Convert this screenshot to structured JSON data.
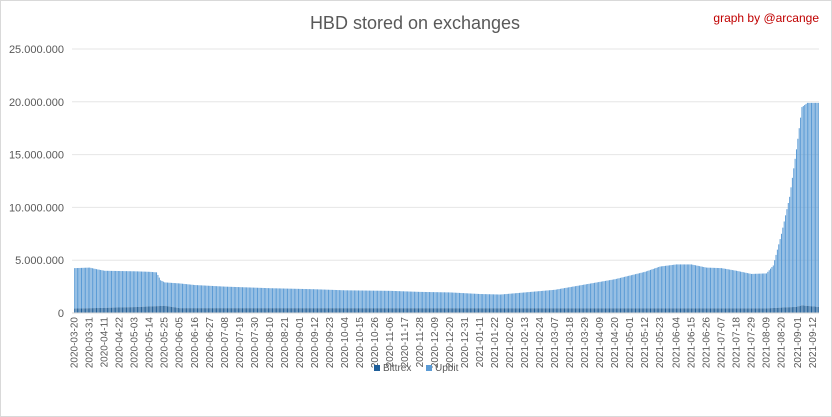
{
  "chart_data": {
    "type": "bar",
    "stacked": true,
    "title": "HBD stored on exchanges",
    "credit": "graph by @arcange",
    "xlabel": "",
    "ylabel": "",
    "ylim": [
      0,
      25000000
    ],
    "yticks": [
      "0",
      "5.000.000",
      "10.000.000",
      "15.000.000",
      "20.000.000",
      "25.000.000"
    ],
    "ytick_values": [
      0,
      5000000,
      10000000,
      15000000,
      20000000,
      25000000
    ],
    "grid": true,
    "legend_position": "bottom",
    "date_start": "2020-03-20",
    "date_end": "2021-09-16",
    "x_tick_labels": [
      "2020-03-20",
      "2020-03-31",
      "2020-04-11",
      "2020-04-22",
      "2020-05-03",
      "2020-05-14",
      "2020-05-25",
      "2020-06-05",
      "2020-06-16",
      "2020-06-27",
      "2020-07-08",
      "2020-07-19",
      "2020-07-30",
      "2020-08-10",
      "2020-08-21",
      "2020-09-01",
      "2020-09-12",
      "2020-09-23",
      "2020-10-04",
      "2020-10-15",
      "2020-10-26",
      "2020-11-06",
      "2020-11-17",
      "2020-11-28",
      "2020-12-09",
      "2020-12-20",
      "2020-12-31",
      "2021-01-11",
      "2021-01-22",
      "2021-02-02",
      "2021-02-13",
      "2021-02-24",
      "2021-03-07",
      "2021-03-18",
      "2021-03-29",
      "2021-04-09",
      "2021-04-20",
      "2021-05-01",
      "2021-05-12",
      "2021-05-23",
      "2021-06-04",
      "2021-06-15",
      "2021-06-26",
      "2021-07-07",
      "2021-07-18",
      "2021-07-29",
      "2021-08-09",
      "2021-08-20",
      "2021-09-01",
      "2021-09-12"
    ],
    "total_keypoints": [
      [
        "2020-03-20",
        4250000
      ],
      [
        "2020-03-31",
        4300000
      ],
      [
        "2020-04-05",
        4150000
      ],
      [
        "2020-04-11",
        4000000
      ],
      [
        "2020-05-03",
        3950000
      ],
      [
        "2020-05-14",
        3900000
      ],
      [
        "2020-05-19",
        3850000
      ],
      [
        "2020-05-22",
        3100000
      ],
      [
        "2020-05-25",
        2900000
      ],
      [
        "2020-06-05",
        2800000
      ],
      [
        "2020-06-16",
        2650000
      ],
      [
        "2020-07-08",
        2500000
      ],
      [
        "2020-08-10",
        2350000
      ],
      [
        "2020-09-12",
        2250000
      ],
      [
        "2020-10-04",
        2150000
      ],
      [
        "2020-11-06",
        2100000
      ],
      [
        "2020-11-28",
        2000000
      ],
      [
        "2020-12-20",
        1950000
      ],
      [
        "2021-01-11",
        1800000
      ],
      [
        "2021-01-26",
        1750000
      ],
      [
        "2021-02-13",
        1950000
      ],
      [
        "2021-03-07",
        2200000
      ],
      [
        "2021-03-29",
        2700000
      ],
      [
        "2021-04-20",
        3200000
      ],
      [
        "2021-05-12",
        3900000
      ],
      [
        "2021-05-23",
        4400000
      ],
      [
        "2021-06-04",
        4600000
      ],
      [
        "2021-06-15",
        4600000
      ],
      [
        "2021-06-26",
        4300000
      ],
      [
        "2021-07-07",
        4250000
      ],
      [
        "2021-07-18",
        4000000
      ],
      [
        "2021-07-29",
        3700000
      ],
      [
        "2021-08-09",
        3750000
      ],
      [
        "2021-08-14",
        4500000
      ],
      [
        "2021-08-20",
        7500000
      ],
      [
        "2021-08-26",
        11000000
      ],
      [
        "2021-08-31",
        15500000
      ],
      [
        "2021-09-04",
        19500000
      ],
      [
        "2021-09-08",
        19900000
      ],
      [
        "2021-09-16",
        19900000
      ]
    ],
    "series": [
      {
        "name": "Bittrex",
        "color": "#1f5f99",
        "keypoints": [
          [
            "2020-03-20",
            420000
          ],
          [
            "2020-05-03",
            560000
          ],
          [
            "2020-05-25",
            680000
          ],
          [
            "2020-06-05",
            460000
          ],
          [
            "2021-08-09",
            440000
          ],
          [
            "2021-08-31",
            580000
          ],
          [
            "2021-09-04",
            720000
          ],
          [
            "2021-09-16",
            580000
          ]
        ]
      },
      {
        "name": "Upbit",
        "color": "#5b9bd5",
        "keypoints": []
      }
    ]
  }
}
